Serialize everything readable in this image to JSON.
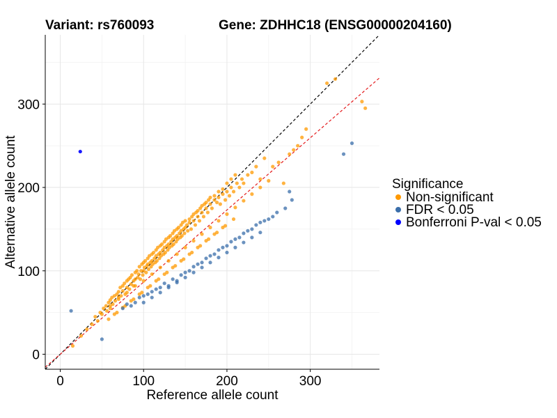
{
  "chart_data": {
    "type": "scatter",
    "title_variant": "Variant: rs760093",
    "title_gene": "Gene: ZDHHC18 (ENSG00000204160)",
    "xlabel": "Reference allele count",
    "ylabel": "Alternative allele count",
    "xlim": [
      -18,
      383
    ],
    "ylim": [
      -18,
      383
    ],
    "x_ticks": [
      0,
      100,
      200,
      300
    ],
    "y_ticks": [
      0,
      100,
      200,
      300
    ],
    "grid": true,
    "legend": {
      "title": "Significance",
      "placement": "right",
      "entries": [
        {
          "label": "Non-significant",
          "color": "#FF9900"
        },
        {
          "label": "FDR < 0.05",
          "color": "#3A6EAA"
        },
        {
          "label": "Bonferroni P-val < 0.05",
          "color": "#0000FF"
        }
      ]
    },
    "reference_lines": [
      {
        "name": "identity",
        "slope": 1,
        "intercept": 0,
        "color": "#000000",
        "style": "dashed"
      },
      {
        "name": "fit",
        "slope": 0.865,
        "intercept": 0,
        "color": "#E41A1C",
        "style": "dashed"
      }
    ],
    "series": [
      {
        "name": "Non-significant",
        "color": "#FF9900",
        "x": [
          15,
          25,
          32,
          38,
          42,
          45,
          48,
          50,
          52,
          55,
          56,
          58,
          60,
          60,
          62,
          63,
          65,
          66,
          68,
          70,
          70,
          72,
          73,
          75,
          75,
          77,
          78,
          80,
          80,
          82,
          83,
          84,
          85,
          86,
          88,
          88,
          90,
          90,
          92,
          93,
          94,
          95,
          96,
          97,
          98,
          99,
          100,
          100,
          101,
          102,
          103,
          104,
          105,
          105,
          106,
          107,
          108,
          109,
          110,
          110,
          111,
          112,
          113,
          114,
          115,
          115,
          116,
          117,
          118,
          119,
          120,
          120,
          121,
          122,
          123,
          124,
          125,
          125,
          126,
          127,
          128,
          129,
          130,
          130,
          131,
          132,
          133,
          134,
          135,
          135,
          136,
          137,
          138,
          139,
          140,
          140,
          141,
          142,
          143,
          144,
          145,
          145,
          146,
          147,
          148,
          149,
          150,
          150,
          152,
          153,
          155,
          155,
          157,
          158,
          160,
          160,
          162,
          163,
          165,
          165,
          167,
          168,
          170,
          170,
          172,
          173,
          175,
          175,
          177,
          178,
          180,
          180,
          182,
          185,
          185,
          188,
          190,
          190,
          192,
          195,
          195,
          198,
          200,
          200,
          203,
          205,
          205,
          208,
          210,
          212,
          215,
          218,
          220,
          225,
          230,
          235,
          240,
          245,
          255,
          262,
          268,
          275,
          280,
          285,
          290,
          295,
          320,
          330,
          362,
          366,
          60,
          70,
          80,
          90,
          100,
          110,
          120,
          130,
          140,
          150,
          160,
          170,
          180,
          190,
          200,
          210,
          220,
          230,
          240,
          250,
          65,
          75,
          85,
          95,
          105,
          115,
          125,
          135,
          145,
          155,
          165,
          175,
          185,
          195,
          58,
          68,
          78,
          88,
          98,
          108,
          118,
          128,
          138,
          148,
          158,
          168,
          178,
          188,
          198,
          208
        ],
        "y": [
          10,
          22,
          30,
          36,
          45,
          40,
          50,
          48,
          55,
          58,
          52,
          62,
          65,
          55,
          68,
          60,
          70,
          64,
          72,
          75,
          68,
          80,
          70,
          82,
          76,
          85,
          72,
          88,
          80,
          90,
          78,
          92,
          84,
          95,
          88,
          82,
          98,
          90,
          100,
          92,
          96,
          105,
          90,
          100,
          108,
          95,
          110,
          100,
          104,
          112,
          98,
          106,
          115,
          108,
          102,
          118,
          110,
          105,
          120,
          112,
          108,
          122,
          115,
          110,
          125,
          118,
          112,
          128,
          120,
          115,
          130,
          122,
          118,
          132,
          125,
          120,
          135,
          128,
          122,
          138,
          130,
          125,
          140,
          132,
          128,
          142,
          135,
          130,
          145,
          138,
          132,
          148,
          140,
          135,
          150,
          142,
          138,
          152,
          145,
          140,
          155,
          148,
          142,
          158,
          150,
          145,
          160,
          152,
          155,
          148,
          162,
          158,
          150,
          165,
          168,
          160,
          155,
          170,
          172,
          165,
          160,
          175,
          178,
          170,
          165,
          180,
          182,
          175,
          170,
          185,
          188,
          180,
          175,
          190,
          185,
          182,
          195,
          188,
          180,
          198,
          192,
          185,
          205,
          195,
          190,
          210,
          200,
          195,
          215,
          205,
          200,
          210,
          205,
          215,
          218,
          225,
          210,
          235,
          225,
          230,
          205,
          240,
          245,
          250,
          260,
          270,
          325,
          330,
          303,
          295,
          58,
          66,
          74,
          82,
          88,
          96,
          104,
          112,
          120,
          128,
          136,
          144,
          152,
          160,
          168,
          176,
          184,
          192,
          200,
          208,
          48,
          56,
          64,
          72,
          80,
          88,
          96,
          104,
          112,
          120,
          128,
          136,
          144,
          152,
          42,
          50,
          58,
          66,
          74,
          82,
          90,
          98,
          106,
          114,
          122,
          130,
          138,
          146,
          154,
          162
        ]
      },
      {
        "name": "FDR < 0.05",
        "color": "#3A6EAA",
        "x": [
          13,
          50,
          75,
          80,
          85,
          90,
          95,
          100,
          105,
          110,
          115,
          120,
          125,
          130,
          135,
          140,
          145,
          150,
          155,
          160,
          165,
          170,
          175,
          180,
          185,
          190,
          195,
          200,
          205,
          210,
          215,
          220,
          225,
          230,
          235,
          240,
          245,
          250,
          255,
          260,
          270,
          275,
          278,
          340,
          350,
          100,
          110,
          120,
          130,
          140,
          150,
          160,
          170,
          180,
          190,
          200,
          210,
          220,
          230,
          240
        ],
        "y": [
          52,
          18,
          55,
          60,
          58,
          62,
          68,
          70,
          72,
          75,
          78,
          80,
          85,
          82,
          90,
          88,
          95,
          98,
          100,
          105,
          108,
          110,
          115,
          118,
          120,
          125,
          128,
          130,
          135,
          138,
          140,
          145,
          148,
          150,
          155,
          158,
          160,
          162,
          165,
          170,
          175,
          195,
          185,
          240,
          253,
          62,
          68,
          74,
          80,
          86,
          92,
          98,
          104,
          110,
          116,
          122,
          128,
          134,
          140,
          146
        ]
      },
      {
        "name": "Bonferroni P-val < 0.05",
        "color": "#0000FF",
        "x": [
          24
        ],
        "y": [
          243
        ]
      }
    ]
  }
}
